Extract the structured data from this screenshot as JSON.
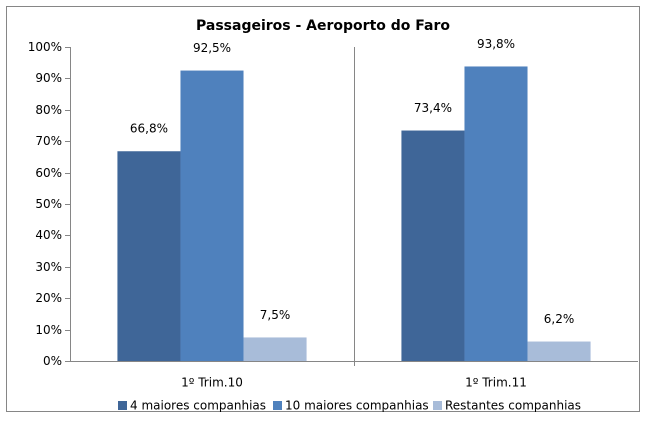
{
  "chart_data": {
    "type": "bar",
    "title": "Passageiros - Aeroporto do Faro",
    "categories": [
      "1º Trim.10",
      "1º Trim.11"
    ],
    "series": [
      {
        "name": "4 maiores companhias",
        "color": "#3f6698",
        "values": [
          66.8,
          73.4
        ],
        "value_labels": [
          "66,8%",
          "73,4%"
        ]
      },
      {
        "name": "10 maiores companhias",
        "color": "#4f81bd",
        "values": [
          92.5,
          93.8
        ],
        "value_labels": [
          "92,5%",
          "93,8%"
        ]
      },
      {
        "name": "Restantes companhias",
        "color": "#a8bcd9",
        "values": [
          7.5,
          6.2
        ],
        "value_labels": [
          "7,5%",
          "6,2%"
        ]
      }
    ],
    "ylim": [
      0,
      100
    ],
    "yticks": [
      {
        "value": 0,
        "label": "0%"
      },
      {
        "value": 10,
        "label": "10%"
      },
      {
        "value": 20,
        "label": "20%"
      },
      {
        "value": 30,
        "label": "30%"
      },
      {
        "value": 40,
        "label": "40%"
      },
      {
        "value": 50,
        "label": "50%"
      },
      {
        "value": 60,
        "label": "60%"
      },
      {
        "value": 70,
        "label": "70%"
      },
      {
        "value": 80,
        "label": "80%"
      },
      {
        "value": 90,
        "label": "90%"
      },
      {
        "value": 100,
        "label": "100%"
      }
    ],
    "grid": false,
    "legend": "bottom"
  }
}
